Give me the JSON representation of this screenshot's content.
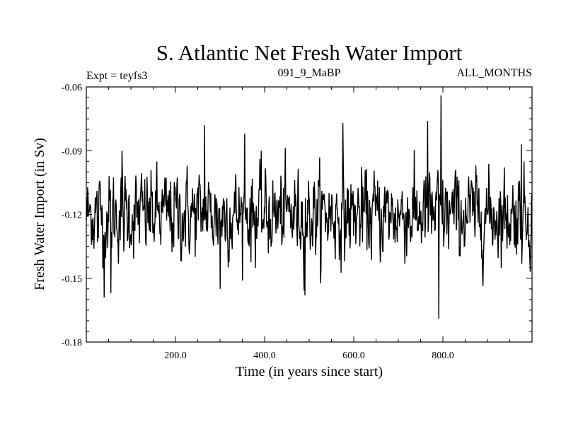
{
  "chart_data": {
    "type": "line",
    "title": "S. Atlantic Net Fresh Water Import",
    "subtitle_left": "Expt = teyfs3",
    "subtitle_center": "091_9_MaBP",
    "subtitle_right": "ALL_MONTHS",
    "xlabel": "Time (in years since start)",
    "ylabel": "Fresh Water Import (in Sv)",
    "xlim": [
      0,
      1000
    ],
    "ylim": [
      -0.18,
      -0.06
    ],
    "xticks": [
      200,
      400,
      600,
      800
    ],
    "xtick_labels": [
      "200.0",
      "400.0",
      "600.0",
      "800.0"
    ],
    "yticks": [
      -0.06,
      -0.09,
      -0.12,
      -0.15,
      -0.18
    ],
    "ytick_labels": [
      "-0.06",
      "-0.09",
      "-0.12",
      "-0.15",
      "-0.18"
    ],
    "series_color": "#000000",
    "series": [
      {
        "name": "Net Fresh Water Import",
        "n_points": 1000,
        "mean": -0.12,
        "approx_std": 0.0095,
        "notable_points": [
          {
            "x": 10,
            "y": -0.117
          },
          {
            "x": 25,
            "y": -0.133
          },
          {
            "x": 40,
            "y": -0.159
          },
          {
            "x": 55,
            "y": -0.157
          },
          {
            "x": 80,
            "y": -0.09
          },
          {
            "x": 265,
            "y": -0.078
          },
          {
            "x": 300,
            "y": -0.155
          },
          {
            "x": 355,
            "y": -0.082
          },
          {
            "x": 490,
            "y": -0.158
          },
          {
            "x": 575,
            "y": -0.077
          },
          {
            "x": 765,
            "y": -0.076
          },
          {
            "x": 790,
            "y": -0.169
          },
          {
            "x": 795,
            "y": -0.064
          },
          {
            "x": 975,
            "y": -0.087
          }
        ]
      }
    ]
  }
}
